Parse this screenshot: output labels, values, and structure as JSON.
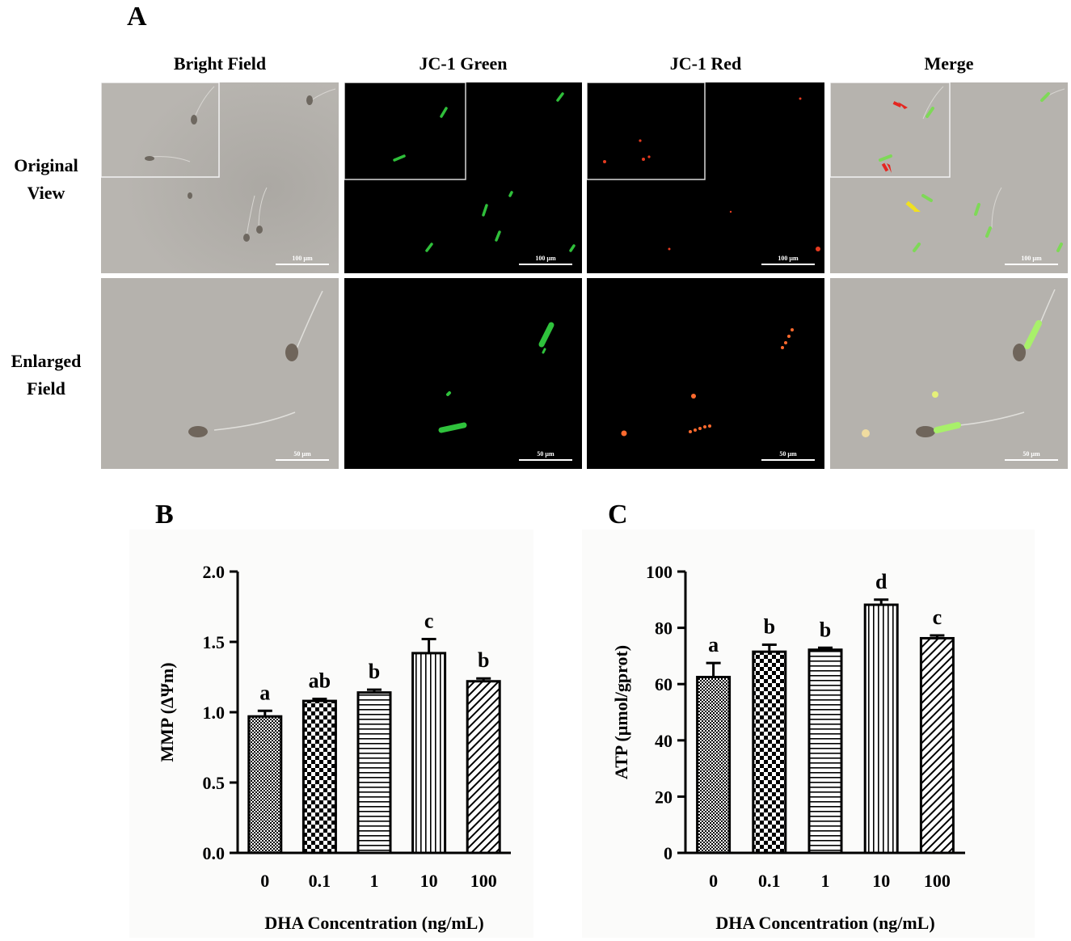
{
  "panelA": {
    "letter": "A",
    "columns": [
      "Bright Field",
      "JC-1 Green",
      "JC-1 Red",
      "Merge"
    ],
    "rows": [
      {
        "label_line1": "Original",
        "label_line2": "View",
        "scale": "100 µm"
      },
      {
        "label_line1": "Enlarged",
        "label_line2": "Field",
        "scale": "50 µm"
      }
    ]
  },
  "chart_data": [
    {
      "panel": "B",
      "type": "bar",
      "categories": [
        "0",
        "0.1",
        "1",
        "10",
        "100"
      ],
      "values": [
        0.97,
        1.08,
        1.14,
        1.42,
        1.22
      ],
      "errors": [
        0.04,
        0.015,
        0.02,
        0.1,
        0.02
      ],
      "significance": [
        "a",
        "ab",
        "b",
        "c",
        "b"
      ],
      "patterns": [
        "dots",
        "checker",
        "hstripes",
        "vstripes",
        "diagonal"
      ],
      "xlabel": "DHA Concentration (ng/mL)",
      "ylabel": "MMP (ΔΨm)",
      "ylim": [
        0,
        2.0
      ],
      "yticks": [
        0.0,
        0.5,
        1.0,
        1.5,
        2.0
      ],
      "ytick_labels": [
        "0.0",
        "0.5",
        "1.0",
        "1.5",
        "2.0"
      ],
      "grid": false
    },
    {
      "panel": "C",
      "type": "bar",
      "categories": [
        "0",
        "0.1",
        "1",
        "10",
        "100"
      ],
      "values": [
        62.5,
        71.5,
        72.2,
        88.2,
        76.3
      ],
      "errors": [
        5.0,
        2.5,
        0.7,
        1.8,
        1.0
      ],
      "significance": [
        "a",
        "b",
        "b",
        "d",
        "c"
      ],
      "patterns": [
        "dots",
        "checker",
        "hstripes",
        "vstripes",
        "diagonal"
      ],
      "xlabel": "DHA Concentration (ng/mL)",
      "ylabel": "ATP (μmol/gprot)",
      "ylim": [
        0,
        100
      ],
      "yticks": [
        0,
        20,
        40,
        60,
        80,
        100
      ],
      "ytick_labels": [
        "0",
        "20",
        "40",
        "60",
        "80",
        "100"
      ],
      "grid": false
    }
  ]
}
